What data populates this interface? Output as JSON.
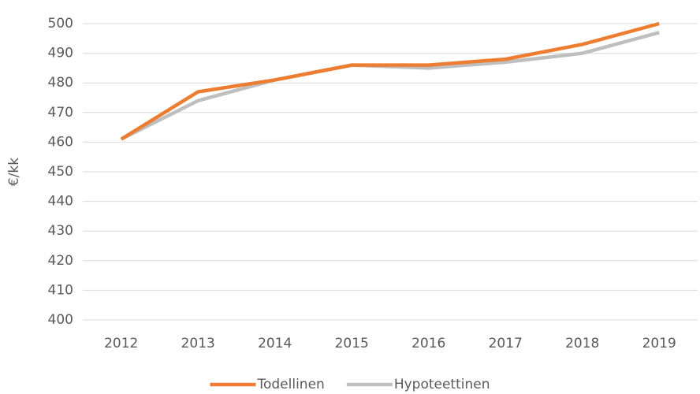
{
  "chart_data": {
    "type": "line",
    "y_label": "€/kk",
    "categories": [
      "2012",
      "2013",
      "2014",
      "2015",
      "2016",
      "2017",
      "2018",
      "2019"
    ],
    "series": [
      {
        "name": "Todellinen",
        "color": "#ed7d31",
        "values": [
          461,
          477,
          481,
          486,
          486,
          488,
          493,
          500
        ]
      },
      {
        "name": "Hypoteettinen",
        "color": "#bfbfbf",
        "values": [
          461,
          474,
          481,
          486,
          485,
          487,
          490,
          497
        ]
      }
    ],
    "ylim": [
      400,
      500
    ],
    "yticks": [
      400,
      410,
      420,
      430,
      440,
      450,
      460,
      470,
      480,
      490,
      500
    ],
    "grid": true,
    "legend": "bottom"
  }
}
